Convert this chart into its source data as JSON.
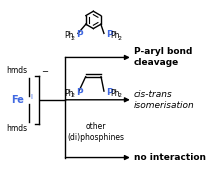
{
  "bg_color": "#ffffff",
  "fe_color": "#4169e1",
  "p_color": "#4169e1",
  "text_color": "#000000",
  "label_top": "P-aryl bond\ncleavage",
  "label_mid": "cis-trans\nisomerisation",
  "label_bot": "no interaction",
  "other_text": "other\n(di)phosphines",
  "figw": 2.21,
  "figh": 1.89,
  "dpi": 100
}
